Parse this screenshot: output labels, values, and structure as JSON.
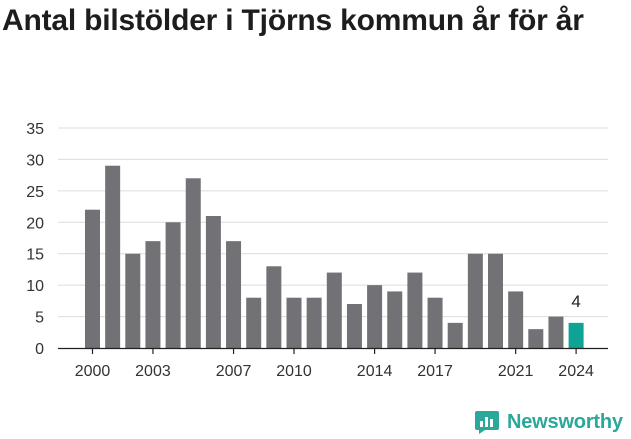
{
  "title": "Antal bilstölder i Tjörns kommun år för år",
  "brand": {
    "name": "Newsworthy",
    "icon": "newsworthy-logo-icon",
    "color": "#2aa89a"
  },
  "chart_data": {
    "type": "bar",
    "title": "Antal bilstölder i Tjörns kommun år för år",
    "xlabel": "",
    "ylabel": "",
    "categories": [
      "2000",
      "2001",
      "2002",
      "2003",
      "2004",
      "2005",
      "2006",
      "2007",
      "2008",
      "2009",
      "2010",
      "2011",
      "2012",
      "2013",
      "2014",
      "2015",
      "2016",
      "2017",
      "2018",
      "2019",
      "2020",
      "2021",
      "2022",
      "2023",
      "2024"
    ],
    "values": [
      22,
      29,
      15,
      17,
      20,
      27,
      21,
      17,
      8,
      13,
      8,
      8,
      12,
      7,
      10,
      9,
      12,
      8,
      4,
      15,
      15,
      9,
      3,
      5,
      4
    ],
    "x_tick_labels": [
      "2000",
      "2003",
      "2007",
      "2010",
      "2014",
      "2017",
      "2021",
      "2024"
    ],
    "y_ticks": [
      0,
      5,
      10,
      15,
      20,
      25,
      30,
      35
    ],
    "ylim": [
      0,
      35
    ],
    "grid": true,
    "bar_color": "#727176",
    "highlight_color": "#0fa396",
    "highlight_category": "2024",
    "annotations": [
      {
        "category": "2024",
        "text": "4"
      }
    ]
  }
}
